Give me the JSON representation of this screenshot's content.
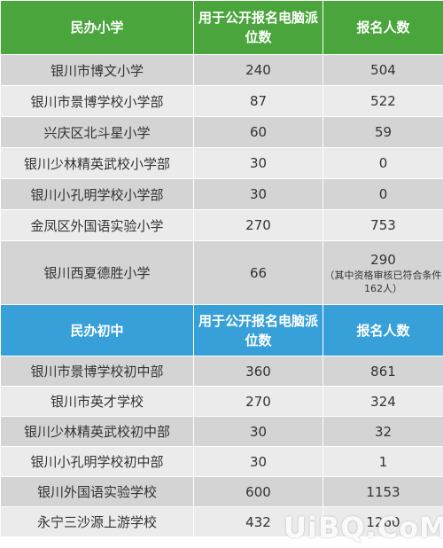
{
  "primary": {
    "headers": [
      "民办小学",
      "用于公开报名电脑派位数",
      "报名人数"
    ],
    "rows": [
      {
        "name": "银川市博文小学",
        "seats": "240",
        "applicants": "504"
      },
      {
        "name": "银川市景博学校小学部",
        "seats": "87",
        "applicants": "522"
      },
      {
        "name": "兴庆区北斗星小学",
        "seats": "60",
        "applicants": "59"
      },
      {
        "name": "银川少林精英武校小学部",
        "seats": "30",
        "applicants": "0"
      },
      {
        "name": "银川小孔明学校小学部",
        "seats": "30",
        "applicants": "0"
      },
      {
        "name": "金凤区外国语实验小学",
        "seats": "270",
        "applicants": "753"
      },
      {
        "name": "银川西夏德胜小学",
        "seats": "66",
        "applicants": "290",
        "note": "（其中资格审核已符合条件162人）"
      }
    ]
  },
  "middle": {
    "headers": [
      "民办初中",
      "用于公开报名电脑派位数",
      "报名人数"
    ],
    "rows": [
      {
        "name": "银川市景博学校初中部",
        "seats": "360",
        "applicants": "861"
      },
      {
        "name": "银川市英才学校",
        "seats": "270",
        "applicants": "324"
      },
      {
        "name": "银川少林精英武校初中部",
        "seats": "30",
        "applicants": "32"
      },
      {
        "name": "银川小孔明学校初中部",
        "seats": "30",
        "applicants": "1"
      },
      {
        "name": "银川外国语实验学校",
        "seats": "600",
        "applicants": "1153"
      },
      {
        "name": "永宁三沙源上游学校",
        "seats": "432",
        "applicants": "1260"
      }
    ]
  },
  "watermark": "UiBQ.CoM",
  "colors": {
    "primary_header": "#4aa63c",
    "middle_header": "#38a0d8",
    "row_dark": "#d4d4d4",
    "row_light": "#ebebeb"
  }
}
